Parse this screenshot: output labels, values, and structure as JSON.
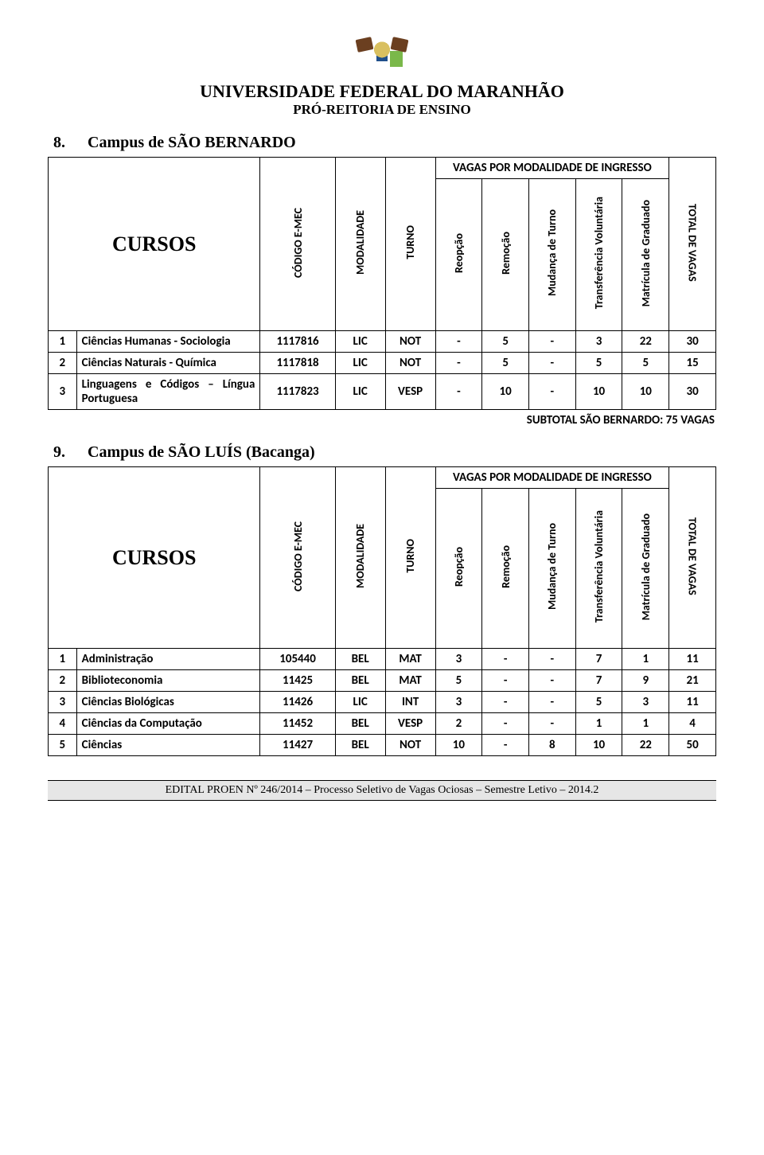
{
  "header": {
    "university": "UNIVERSIDADE FEDERAL DO MARANHÃO",
    "subtitle": "PRÓ-REITORIA DE ENSINO"
  },
  "section8": {
    "number": "8.",
    "title": "Campus de SÃO BERNARDO",
    "cursos_label": "CURSOS",
    "group_label": "VAGAS POR MODALIDADE DE INGRESSO",
    "cols": {
      "codigo": "CÓDIGO E-MEC",
      "modalidade": "MODALIDADE",
      "turno": "TURNO",
      "reopcao": "Reopção",
      "remocao": "Remoção",
      "mudanca": "Mudança de Turno",
      "transf": "Transferência Voluntária",
      "matricula": "Matrícula de Graduado",
      "total": "TOTAL DE VAGAS"
    },
    "rows": [
      {
        "idx": "1",
        "name": "Ciências Humanas - Sociologia",
        "code": "1117816",
        "mod": "LIC",
        "turn": "NOT",
        "v": [
          "-",
          "5",
          "-",
          "3",
          "22"
        ],
        "total": "30"
      },
      {
        "idx": "2",
        "name": "Ciências Naturais - Química",
        "code": "1117818",
        "mod": "LIC",
        "turn": "NOT",
        "v": [
          "-",
          "5",
          "-",
          "5",
          "5"
        ],
        "total": "15"
      },
      {
        "idx": "3",
        "name": "Linguagens e Códigos – Língua Portuguesa",
        "code": "1117823",
        "mod": "LIC",
        "turn": "VESP",
        "v": [
          "-",
          "10",
          "-",
          "10",
          "10"
        ],
        "total": "30"
      }
    ],
    "subtotal": "SUBTOTAL SÃO BERNARDO: 75 VAGAS"
  },
  "section9": {
    "number": "9.",
    "title": "Campus de SÃO LUÍS (Bacanga)",
    "cursos_label": "CURSOS",
    "group_label": "VAGAS POR MODALIDADE DE INGRESSO",
    "cols": {
      "codigo": "CÓDIGO E-MEC",
      "modalidade": "MODALIDADE",
      "turno": "TURNO",
      "reopcao": "Reopção",
      "remocao": "Remoção",
      "mudanca": "Mudança de Turno",
      "transf": "Transferência Voluntária",
      "matricula": "Matrícula de  Graduado",
      "total": "TOTAL  DE VAGAS"
    },
    "rows": [
      {
        "idx": "1",
        "name": "Administração",
        "code": "105440",
        "mod": "BEL",
        "turn": "MAT",
        "v": [
          "3",
          "-",
          "-",
          "7",
          "1"
        ],
        "total": "11"
      },
      {
        "idx": "2",
        "name": "Biblioteconomia",
        "code": "11425",
        "mod": "BEL",
        "turn": "MAT",
        "v": [
          "5",
          "-",
          "-",
          "7",
          "9"
        ],
        "total": "21"
      },
      {
        "idx": "3",
        "name": "Ciências Biológicas",
        "code": "11426",
        "mod": "LIC",
        "turn": "INT",
        "v": [
          "3",
          "-",
          "-",
          "5",
          "3"
        ],
        "total": "11"
      },
      {
        "idx": "4",
        "name": "Ciências da Computação",
        "code": "11452",
        "mod": "BEL",
        "turn": "VESP",
        "v": [
          "2",
          "-",
          "-",
          "1",
          "1"
        ],
        "total": "4"
      },
      {
        "idx": "5",
        "name": "Ciências",
        "code": "11427",
        "mod": "BEL",
        "turn": "NOT",
        "v": [
          "10",
          "-",
          "8",
          "10",
          "22"
        ],
        "total": "50"
      }
    ]
  },
  "footer": "EDITAL PROEN Nº 246/2014 – Processo Seletivo de Vagas Ociosas – Semestre Letivo – 2014.2",
  "colors": {
    "border": "#000000",
    "footer_bg": "#e6e6e6",
    "text": "#000000",
    "background": "#ffffff"
  },
  "fonts": {
    "title_family": "Times New Roman",
    "body_family": "Calibri",
    "uni_title_size_pt": 17,
    "uni_sub_size_pt": 13,
    "section_size_pt": 15,
    "cursos_size_pt": 20,
    "table_cell_size_pt": 11
  }
}
